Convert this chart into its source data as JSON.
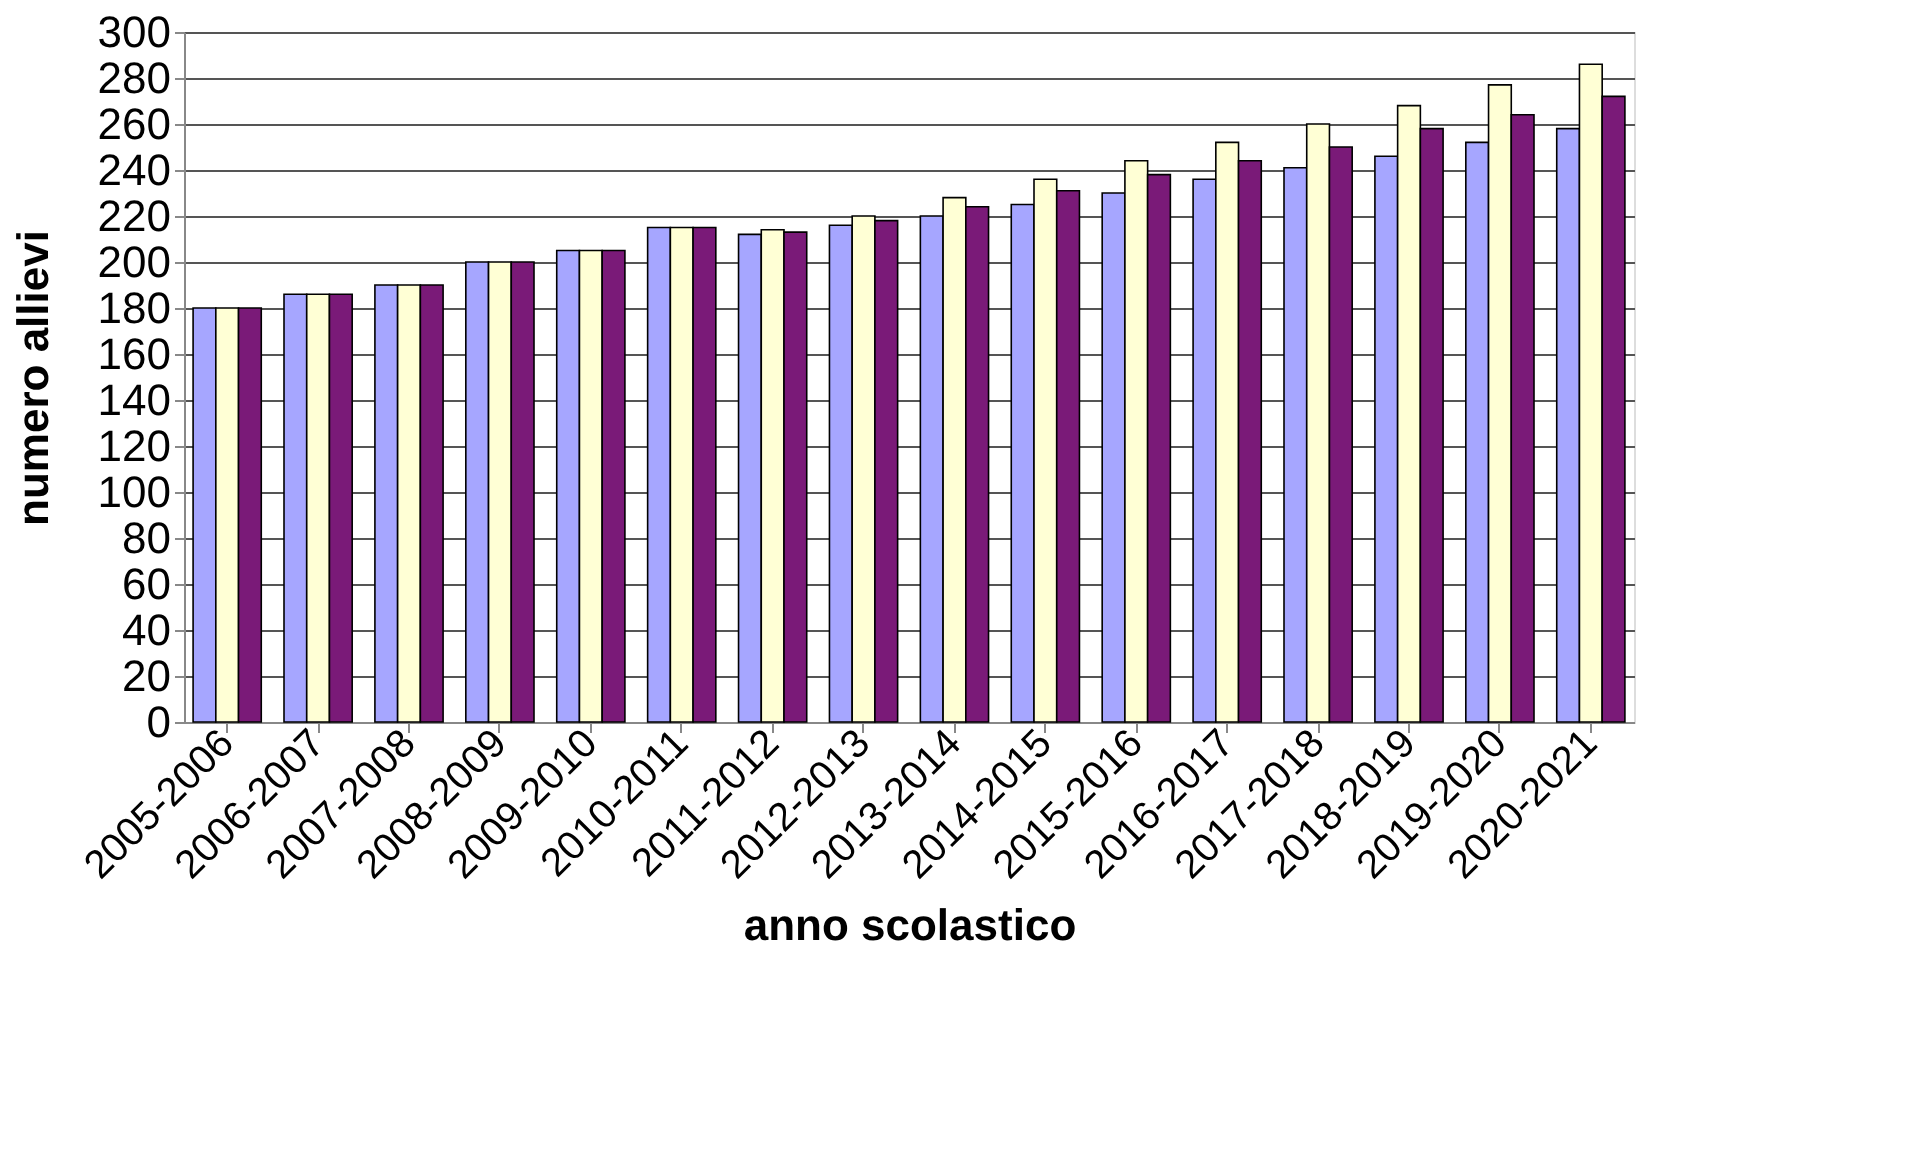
{
  "chart_data": {
    "type": "bar",
    "xlabel": "anno scolastico",
    "ylabel": "numero allievi",
    "categories": [
      "2005-2006",
      "2006-2007",
      "2007-2008",
      "2008-2009",
      "2009-2010",
      "2010-2011",
      "2011-2012",
      "2012-2013",
      "2013-2014",
      "2014-2015",
      "2015-2016",
      "2016-2017",
      "2017-2018",
      "2018-2019",
      "2019-2020",
      "2020-2021"
    ],
    "series": [
      {
        "color": "#a6a6ff",
        "values": [
          180,
          186,
          190,
          200,
          205,
          215,
          212,
          216,
          220,
          225,
          230,
          236,
          241,
          246,
          252,
          258
        ]
      },
      {
        "color": "#ffffd5",
        "values": [
          180,
          186,
          190,
          200,
          205,
          215,
          214,
          220,
          228,
          236,
          244,
          252,
          260,
          268,
          277,
          286
        ]
      },
      {
        "color": "#7a1a78",
        "values": [
          180,
          186,
          190,
          200,
          205,
          215,
          213,
          218,
          224,
          231,
          238,
          244,
          250,
          258,
          264,
          272
        ]
      }
    ],
    "ylim": [
      0,
      300
    ],
    "yticks": [
      0,
      20,
      40,
      60,
      80,
      100,
      120,
      140,
      160,
      180,
      200,
      220,
      240,
      260,
      280,
      300
    ],
    "grid": "y",
    "legend": false
  }
}
